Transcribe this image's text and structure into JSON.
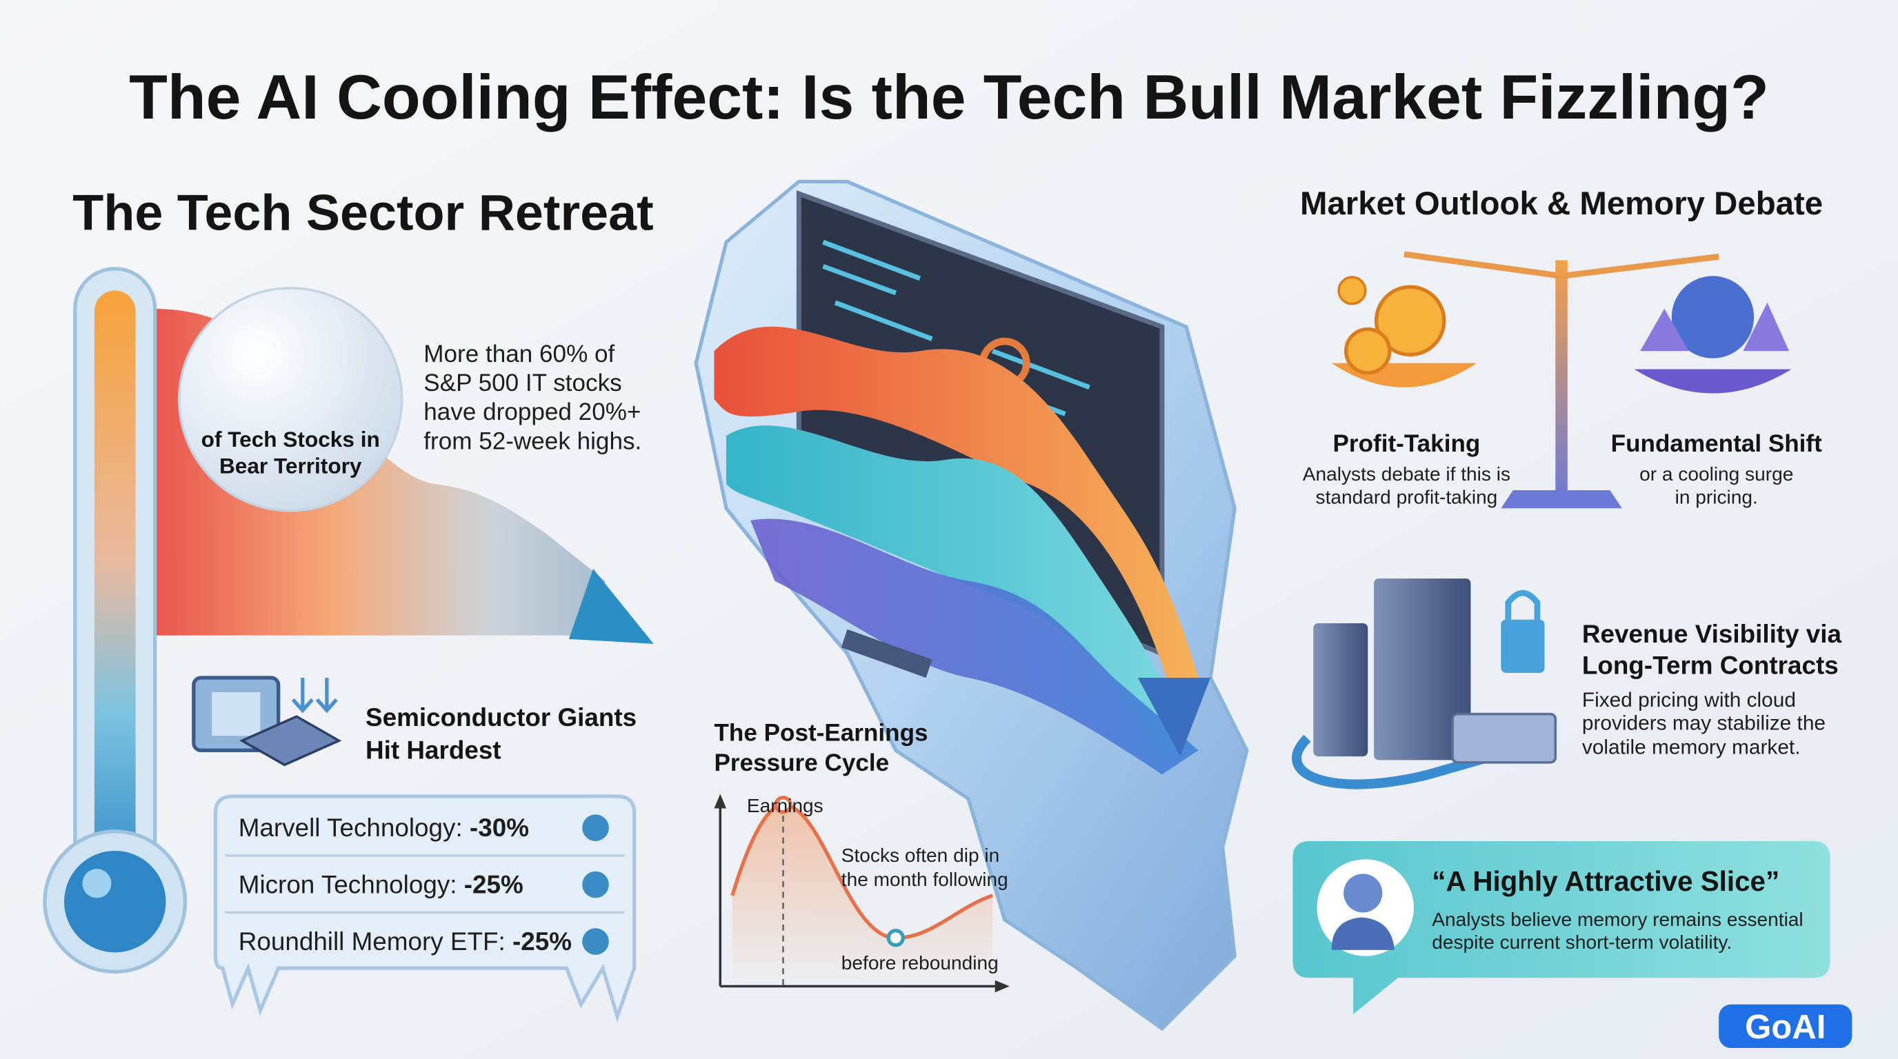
{
  "title": "The AI Cooling Effect: Is the Tech Bull Market Fizzling?",
  "left": {
    "heading": "The Tech Sector Retreat",
    "bubble": [
      "of Tech Stocks in",
      "Bear Territory"
    ],
    "stat": [
      "More than 60% of",
      "S&P 500 IT stocks",
      "have dropped 20%+",
      "from 52-week highs."
    ],
    "semis_heading": [
      "Semiconductor Giants",
      "Hit Hardest"
    ],
    "items": [
      {
        "name": "Marvell Technology:",
        "change": "-30%"
      },
      {
        "name": "Micron Technology:",
        "change": "-25%"
      },
      {
        "name": "Roundhill Memory ETF:",
        "change": "-25%"
      }
    ]
  },
  "middle": {
    "heading": [
      "The Post-Earnings",
      "Pressure Cycle"
    ],
    "peak_label": "Earnings",
    "dip_label": [
      "Stocks often dip in",
      "the month following"
    ],
    "rebound_label": "before rebounding"
  },
  "right": {
    "heading": "Market Outlook & Memory Debate",
    "profit": {
      "title": "Profit-Taking",
      "text": [
        "Analysts debate if this is",
        "standard profit-taking"
      ]
    },
    "shift": {
      "title": "Fundamental Shift",
      "text": [
        "or a cooling surge",
        "in pricing."
      ]
    },
    "revenue": {
      "title": [
        "Revenue Visibility via",
        "Long-Term Contracts"
      ],
      "text": [
        "Fixed pricing with cloud",
        "providers may stabilize the",
        "volatile memory market."
      ]
    },
    "quote": {
      "title": "“A Highly Attractive Slice”",
      "text": [
        "Analysts believe memory remains essential",
        "despite current short-term volatility."
      ]
    }
  },
  "logo": "GoAI"
}
